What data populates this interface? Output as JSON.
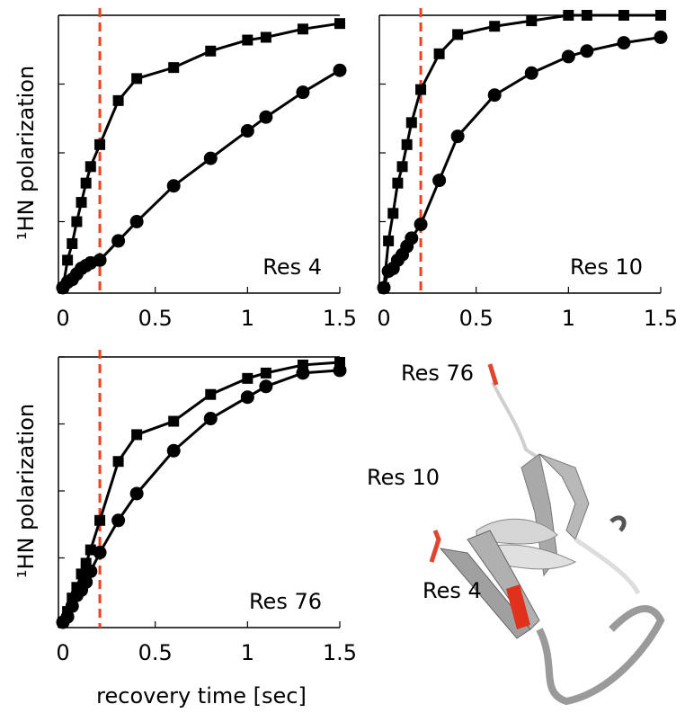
{
  "chart_data": [
    {
      "type": "line",
      "annotation": "Res 4",
      "ylabel": "¹HN polarization",
      "x": [
        0,
        0.025,
        0.05,
        0.075,
        0.1,
        0.125,
        0.15,
        0.2,
        0.3,
        0.4,
        0.6,
        0.8,
        1.0,
        1.1,
        1.3,
        1.5
      ],
      "series": [
        {
          "marker": "square",
          "color": "#000000",
          "values": [
            0.01,
            0.11,
            0.17,
            0.25,
            0.32,
            0.39,
            0.45,
            0.53,
            0.69,
            0.77,
            0.81,
            0.87,
            0.91,
            0.92,
            0.95,
            0.97
          ]
        },
        {
          "marker": "circle",
          "color": "#000000",
          "values": [
            0.01,
            0.03,
            0.04,
            0.06,
            0.08,
            0.09,
            0.1,
            0.11,
            0.18,
            0.25,
            0.38,
            0.48,
            0.58,
            0.63,
            0.72,
            0.8
          ]
        }
      ],
      "xlim": [
        0,
        1.5
      ],
      "xticks": [
        0,
        0.5,
        1,
        1.5
      ],
      "ylim": [
        0,
        1
      ],
      "yticks": [
        0,
        0.25,
        0.5,
        0.75,
        1
      ],
      "vline": 0.2,
      "vline_color": "#f0401e"
    },
    {
      "type": "line",
      "annotation": "Res 10",
      "x": [
        0,
        0.025,
        0.05,
        0.075,
        0.1,
        0.125,
        0.15,
        0.2,
        0.3,
        0.4,
        0.6,
        0.8,
        1.0,
        1.1,
        1.3,
        1.5
      ],
      "series": [
        {
          "marker": "square",
          "color": "#000000",
          "values": [
            0.01,
            0.18,
            0.28,
            0.39,
            0.45,
            0.53,
            0.61,
            0.73,
            0.86,
            0.93,
            0.96,
            0.98,
            1.0,
            1.0,
            1.0,
            1.0
          ]
        },
        {
          "marker": "circle",
          "color": "#000000",
          "values": [
            0.01,
            0.07,
            0.08,
            0.11,
            0.13,
            0.16,
            0.19,
            0.24,
            0.4,
            0.56,
            0.71,
            0.79,
            0.85,
            0.87,
            0.9,
            0.92
          ]
        }
      ],
      "xlim": [
        0,
        1.5
      ],
      "xticks": [
        0,
        0.5,
        1,
        1.5
      ],
      "ylim": [
        0,
        1
      ],
      "yticks": [
        0,
        0.25,
        0.5,
        0.75,
        1
      ],
      "vline": 0.2,
      "vline_color": "#f0401e"
    },
    {
      "type": "line",
      "annotation": "Res 76",
      "ylabel": "¹HN polarization",
      "xlabel": "recovery time [sec]",
      "x": [
        0,
        0.025,
        0.05,
        0.075,
        0.1,
        0.125,
        0.15,
        0.2,
        0.3,
        0.4,
        0.6,
        0.8,
        1.0,
        1.1,
        1.3,
        1.5
      ],
      "series": [
        {
          "marker": "square",
          "color": "#000000",
          "values": [
            0.01,
            0.05,
            0.1,
            0.14,
            0.19,
            0.23,
            0.28,
            0.39,
            0.61,
            0.71,
            0.76,
            0.86,
            0.92,
            0.94,
            0.97,
            0.98
          ]
        },
        {
          "marker": "circle",
          "color": "#000000",
          "values": [
            0.01,
            0.03,
            0.07,
            0.11,
            0.13,
            0.16,
            0.2,
            0.27,
            0.39,
            0.49,
            0.65,
            0.77,
            0.85,
            0.89,
            0.94,
            0.95
          ]
        }
      ],
      "xlim": [
        0,
        1.5
      ],
      "xticks": [
        0,
        0.5,
        1,
        1.5
      ],
      "ylim": [
        0,
        1
      ],
      "yticks": [
        0,
        0.25,
        0.5,
        0.75,
        1
      ],
      "vline": 0.2,
      "vline_color": "#f0401e"
    }
  ],
  "structure": {
    "labels": [
      "Res 76",
      "Res 10",
      "Res 4"
    ]
  }
}
